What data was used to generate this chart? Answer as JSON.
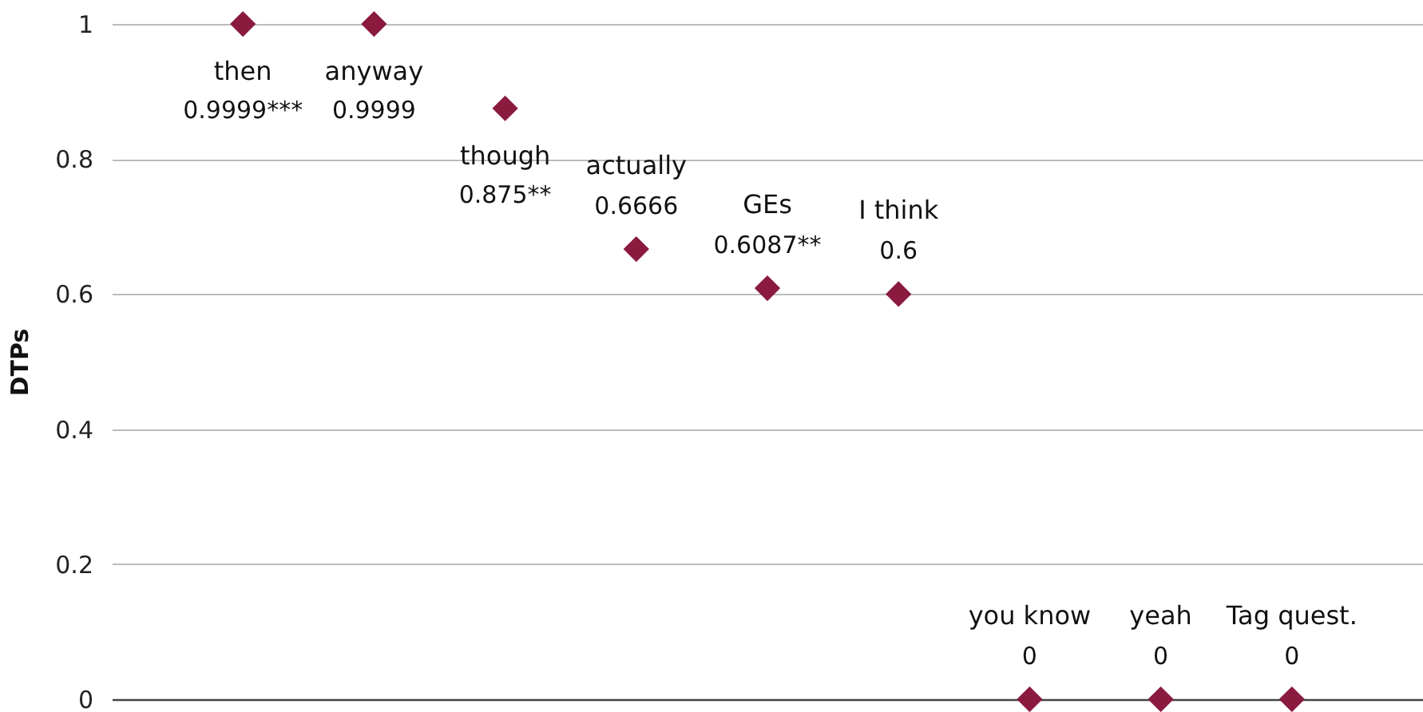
{
  "chart_data": {
    "type": "scatter",
    "ylabel": "DTPs",
    "marker": "diamond",
    "grid": "y",
    "categories": [
      "then",
      "anyway",
      "though",
      "actually",
      "GEs",
      "I think",
      "you know",
      "yeah",
      "Tag quest."
    ],
    "values": [
      0.9999,
      0.9999,
      0.875,
      0.6666,
      0.6087,
      0.6,
      0,
      0,
      0
    ],
    "value_labels": [
      "0.9999***",
      "0.9999",
      "0.875**",
      "0.6666",
      "0.6087**",
      "0.6",
      "0",
      "0",
      "0"
    ],
    "color": "#8b1a3f",
    "ylim": [
      0,
      1
    ],
    "yticks": [
      0,
      0.2,
      0.4,
      0.6,
      0.8,
      1
    ]
  }
}
